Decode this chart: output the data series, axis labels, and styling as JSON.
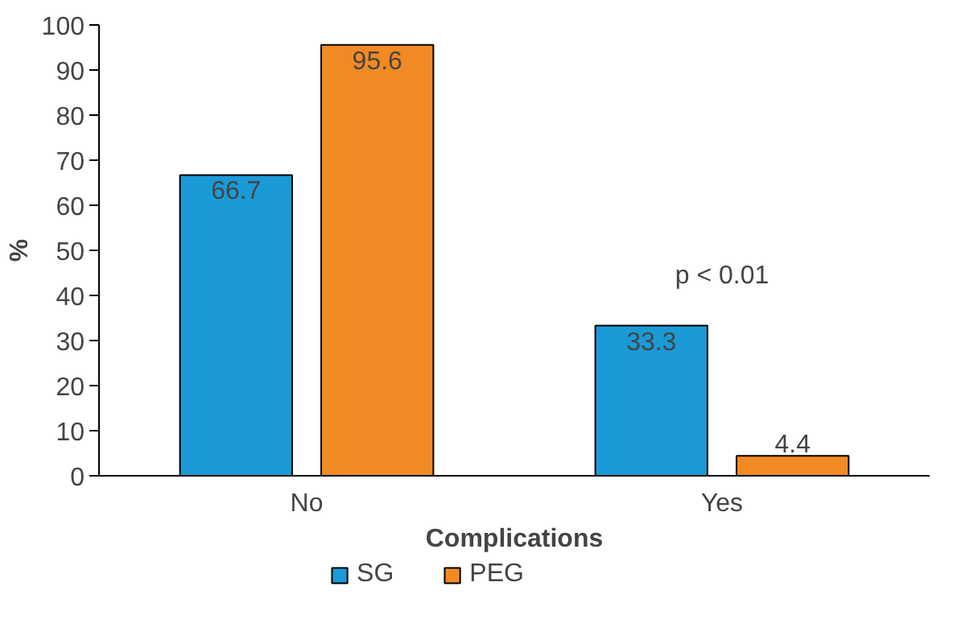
{
  "chart_data": {
    "type": "bar",
    "categories": [
      "No",
      "Yes"
    ],
    "xlabel": "Complications",
    "ylabel": "%",
    "series": [
      {
        "name": "SG",
        "color": "#1a9ad6",
        "values": [
          66.7,
          33.3
        ]
      },
      {
        "name": "PEG",
        "color": "#f28a24",
        "values": [
          95.6,
          4.4
        ]
      }
    ],
    "ylim": [
      0,
      100
    ],
    "yticks": [
      0,
      10,
      20,
      30,
      40,
      50,
      60,
      70,
      80,
      90,
      100
    ],
    "data_labels": true,
    "grid": false,
    "legend": "bottom",
    "annotations": [
      "p < 0.01"
    ]
  }
}
